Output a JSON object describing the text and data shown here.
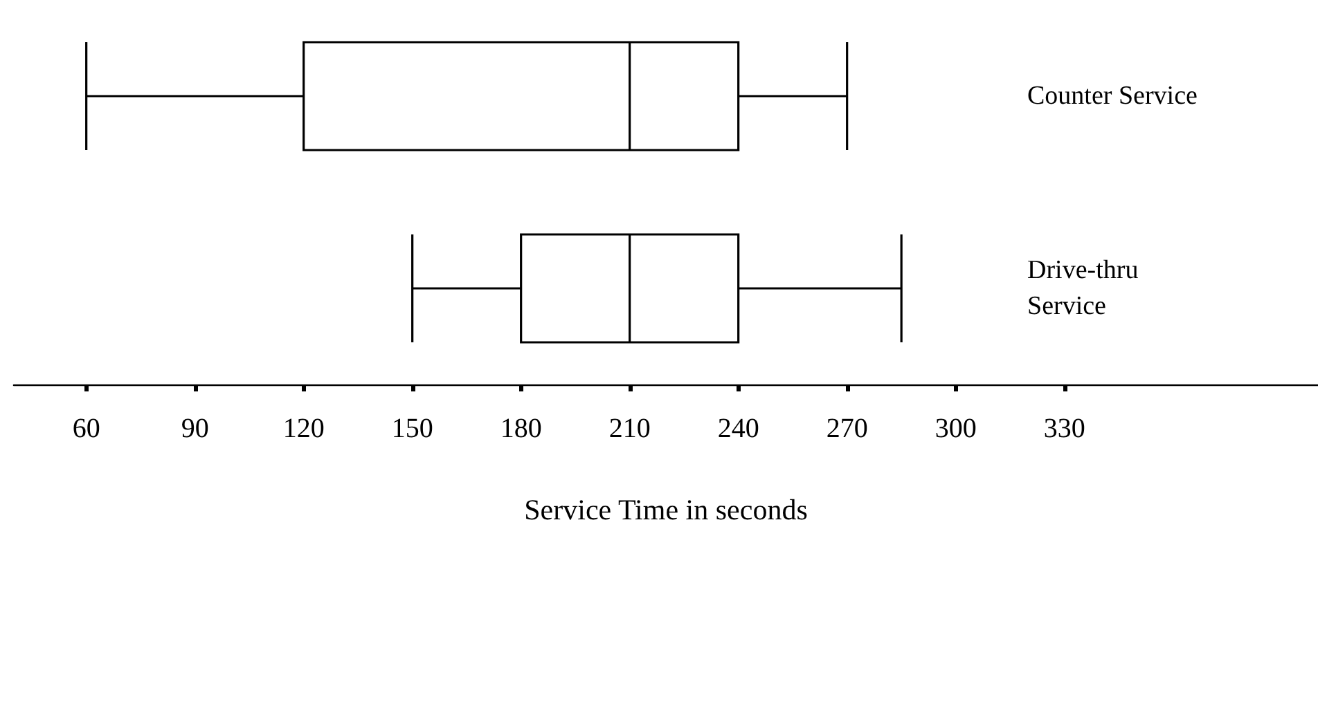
{
  "chart_data": {
    "type": "box",
    "orientation": "horizontal",
    "xlabel": "Service Time in seconds",
    "categories": [
      "Counter Service",
      "Drive-thru Service"
    ],
    "boxes": [
      {
        "low": 60,
        "q1": 120,
        "median": 210,
        "q3": 240,
        "high": 270
      },
      {
        "low": 150,
        "q1": 180,
        "median": 210,
        "q3": 240,
        "high": 285
      }
    ],
    "color": "#000000",
    "xlim": [
      40,
      400
    ],
    "xticks": [
      60,
      90,
      120,
      150,
      180,
      210,
      240,
      270,
      300,
      330
    ],
    "grid": false
  }
}
